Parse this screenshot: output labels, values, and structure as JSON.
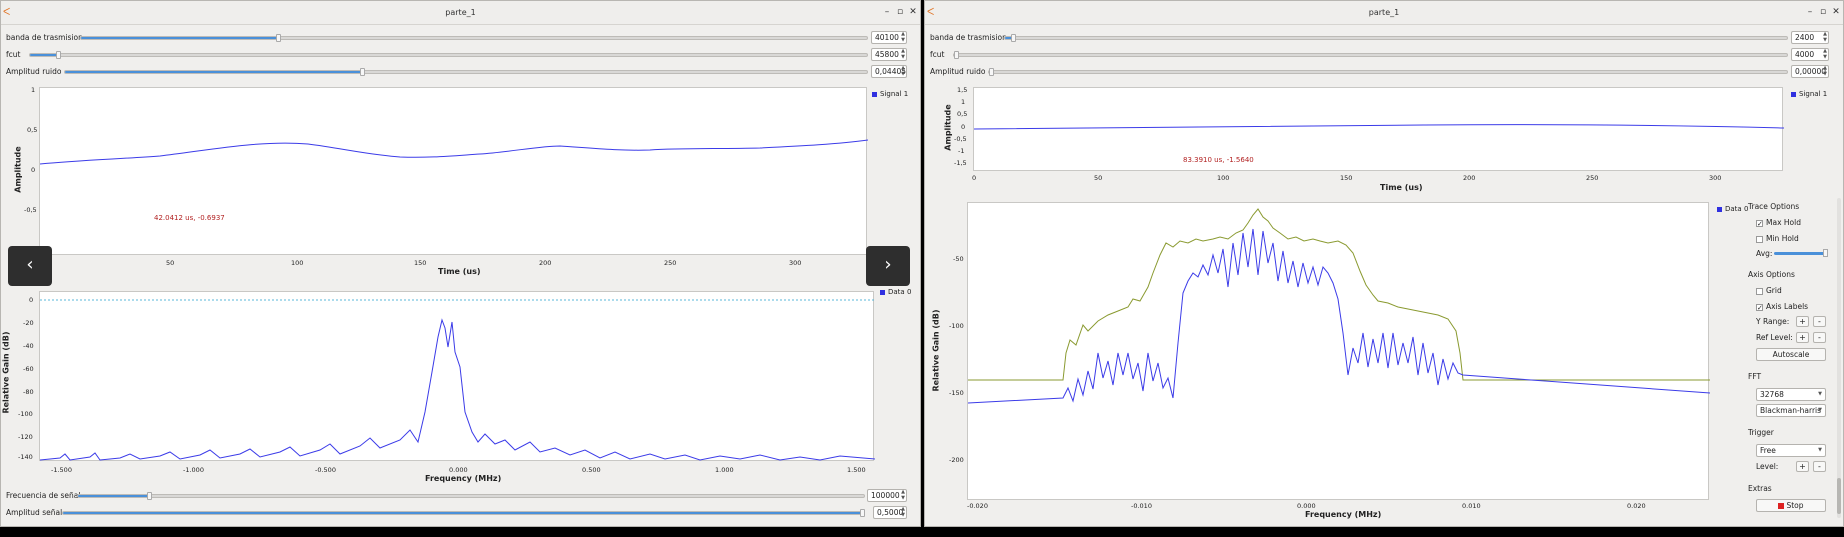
{
  "window1": {
    "title": "parte_1",
    "sliders_top": [
      {
        "label": "banda de trasmision",
        "value": "40100",
        "fraction": 0.25
      },
      {
        "label": "fcut",
        "value": "45800",
        "fraction": 0.033
      },
      {
        "label": "Amplitud ruido",
        "value": "0,04405",
        "fraction": 0.44
      }
    ],
    "time_plot": {
      "ylabel": "Amplitude",
      "xlabel": "Time (us)",
      "yticks": [
        "1",
        "0,5",
        "0",
        "-0,5"
      ],
      "xticks": [
        "50",
        "100",
        "150",
        "200",
        "250",
        "300"
      ],
      "legend": "Signal 1",
      "marker": "42.0412 us, -0.6937"
    },
    "freq_plot": {
      "ylabel": "Relative Gain (dB)",
      "xlabel": "Frequency (MHz)",
      "yticks": [
        "0",
        "-20",
        "-40",
        "-60",
        "-80",
        "-100",
        "-120",
        "-140"
      ],
      "xticks": [
        "-1.500",
        "-1.000",
        "-0.500",
        "0.000",
        "0.500",
        "1.000",
        "1.500"
      ],
      "legend": "Data 0"
    },
    "sliders_bottom": [
      {
        "label": "Frecuencia de señal",
        "value": "100000",
        "fraction": 0.11
      },
      {
        "label": "Amplitud señal",
        "value": "0,5000",
        "fraction": 1.0
      }
    ],
    "nav": {
      "prev": "‹",
      "next": "›"
    }
  },
  "window2": {
    "title": "parte_1",
    "sliders_top": [
      {
        "label": "banda de trasmision",
        "value": "2400",
        "fraction": 0.01
      },
      {
        "label": "fcut",
        "value": "4000",
        "fraction": 0.005
      },
      {
        "label": "Amplitud ruido",
        "value": "0,00000",
        "fraction": 0.0
      }
    ],
    "time_plot": {
      "ylabel": "Amplitude",
      "xlabel": "Time (us)",
      "yticks": [
        "1,5",
        "1",
        "0,5",
        "0",
        "-0,5",
        "-1",
        "-1,5"
      ],
      "xticks": [
        "0",
        "50",
        "100",
        "150",
        "200",
        "250",
        "300"
      ],
      "legend": "Signal 1",
      "marker": "83.3910 us, -1.5640"
    },
    "freq_plot": {
      "ylabel": "Relative Gain (dB)",
      "xlabel": "Frequency (MHz)",
      "yticks": [
        "-50",
        "-100",
        "-150",
        "-200"
      ],
      "xticks": [
        "-0.020",
        "-0.010",
        "0.000",
        "0.010",
        "0.020"
      ],
      "legend": "Data 0"
    },
    "panel": {
      "trace_options": "Trace Options",
      "max_hold": "Max Hold",
      "max_hold_checked": true,
      "min_hold": "Min Hold",
      "min_hold_checked": false,
      "avg": "Avg:",
      "axis_options": "Axis Options",
      "grid": "Grid",
      "grid_checked": false,
      "axis_labels": "Axis Labels",
      "axis_labels_checked": true,
      "y_range": "Y Range:",
      "ref_level": "Ref Level:",
      "autoscale": "Autoscale",
      "fft": "FFT",
      "fft_size": "32768",
      "window": "Blackman-harris",
      "trigger": "Trigger",
      "trigger_mode": "Free",
      "level": "Level:",
      "extras": "Extras",
      "stop": "Stop",
      "plus": "+",
      "minus": "-"
    }
  },
  "colors": {
    "trace": "#3b3be8",
    "maxhold": "#8a9a30",
    "marker": "#b22222",
    "slider": "#4a90d9"
  }
}
